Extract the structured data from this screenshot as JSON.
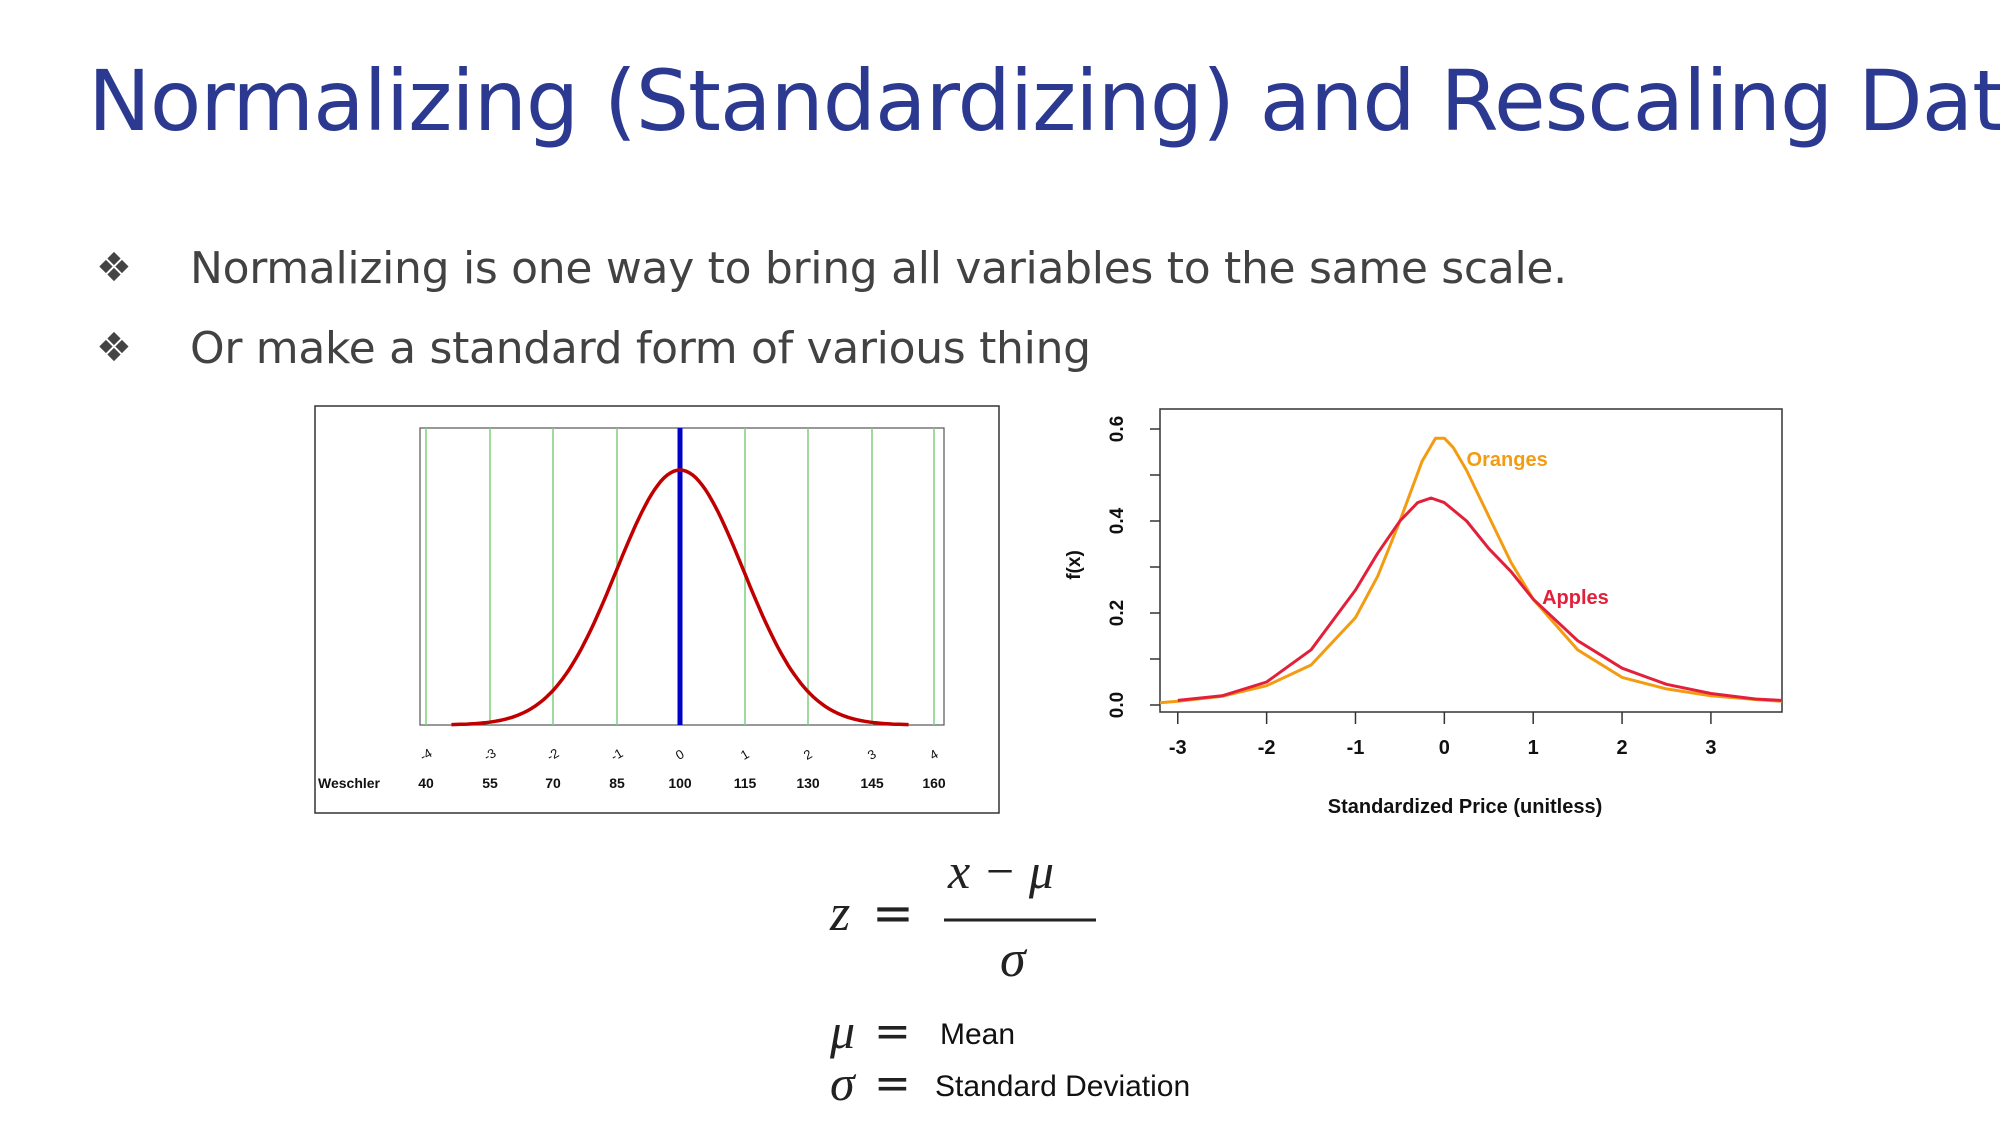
{
  "slide": {
    "title": "Normalizing (Standardizing) and Rescaling Data",
    "bullet_icon": "diamond-bullet-icon",
    "bullets": [
      {
        "text": "Normalizing is one way to bring all variables to the same scale."
      },
      {
        "text": "Or make a standard form of various thing"
      }
    ]
  },
  "chart_data": [
    {
      "type": "line",
      "row_label": "Weschler",
      "z_ticks": [
        "-4",
        "-3",
        "-2",
        "-1",
        "0",
        "1",
        "2",
        "3",
        "4"
      ],
      "categories": [
        "40",
        "55",
        "70",
        "85",
        "100",
        "115",
        "130",
        "145",
        "160"
      ],
      "xlim": [
        -4,
        4
      ],
      "mean_line_x": 0,
      "series": [
        {
          "values": "standard normal density curve (mean 100, sd 15)"
        }
      ],
      "colors": {
        "curve": "#c00000",
        "mean_line": "#0000c8",
        "grid": "#7fd17f",
        "frame": "#333333"
      }
    },
    {
      "type": "line",
      "xlabel": "Standardized Price (unitless)",
      "ylabel": "f(x)",
      "xlim": [
        -3.2,
        3.8
      ],
      "ylim": [
        0,
        0.65
      ],
      "xticks": [
        "-3",
        "-2",
        "-1",
        "0",
        "1",
        "2",
        "3"
      ],
      "yticks": [
        "0.0",
        "0.2",
        "0.4",
        "0.6"
      ],
      "series": [
        {
          "name": "Oranges",
          "color": "#f39c12",
          "x": [
            -3.2,
            -3.0,
            -2.5,
            -2.0,
            -1.5,
            -1.0,
            -0.75,
            -0.5,
            -0.25,
            -0.1,
            0.0,
            0.1,
            0.25,
            0.5,
            0.75,
            1.0,
            1.5,
            2.0,
            2.5,
            3.0,
            3.5,
            3.8
          ],
          "y": [
            0.005,
            0.008,
            0.019,
            0.042,
            0.087,
            0.19,
            0.28,
            0.4,
            0.53,
            0.58,
            0.58,
            0.56,
            0.51,
            0.41,
            0.31,
            0.23,
            0.12,
            0.06,
            0.035,
            0.02,
            0.012,
            0.008
          ]
        },
        {
          "name": "Apples",
          "color": "#e3203a",
          "x": [
            -3.0,
            -2.5,
            -2.0,
            -1.5,
            -1.0,
            -0.75,
            -0.5,
            -0.3,
            -0.15,
            0.0,
            0.25,
            0.5,
            0.75,
            1.0,
            1.5,
            2.0,
            2.5,
            3.0,
            3.5,
            3.8
          ],
          "y": [
            0.01,
            0.02,
            0.05,
            0.12,
            0.25,
            0.33,
            0.4,
            0.44,
            0.45,
            0.44,
            0.4,
            0.34,
            0.29,
            0.23,
            0.14,
            0.08,
            0.045,
            0.025,
            0.013,
            0.01
          ]
        }
      ]
    }
  ],
  "formula": {
    "lhs": "z",
    "equals": "=",
    "numerator": "x − μ",
    "denominator": "σ",
    "legend": [
      {
        "symbol": "μ",
        "equals": "=",
        "label": "Mean"
      },
      {
        "symbol": "σ",
        "equals": "=",
        "label": "Standard Deviation"
      }
    ]
  }
}
